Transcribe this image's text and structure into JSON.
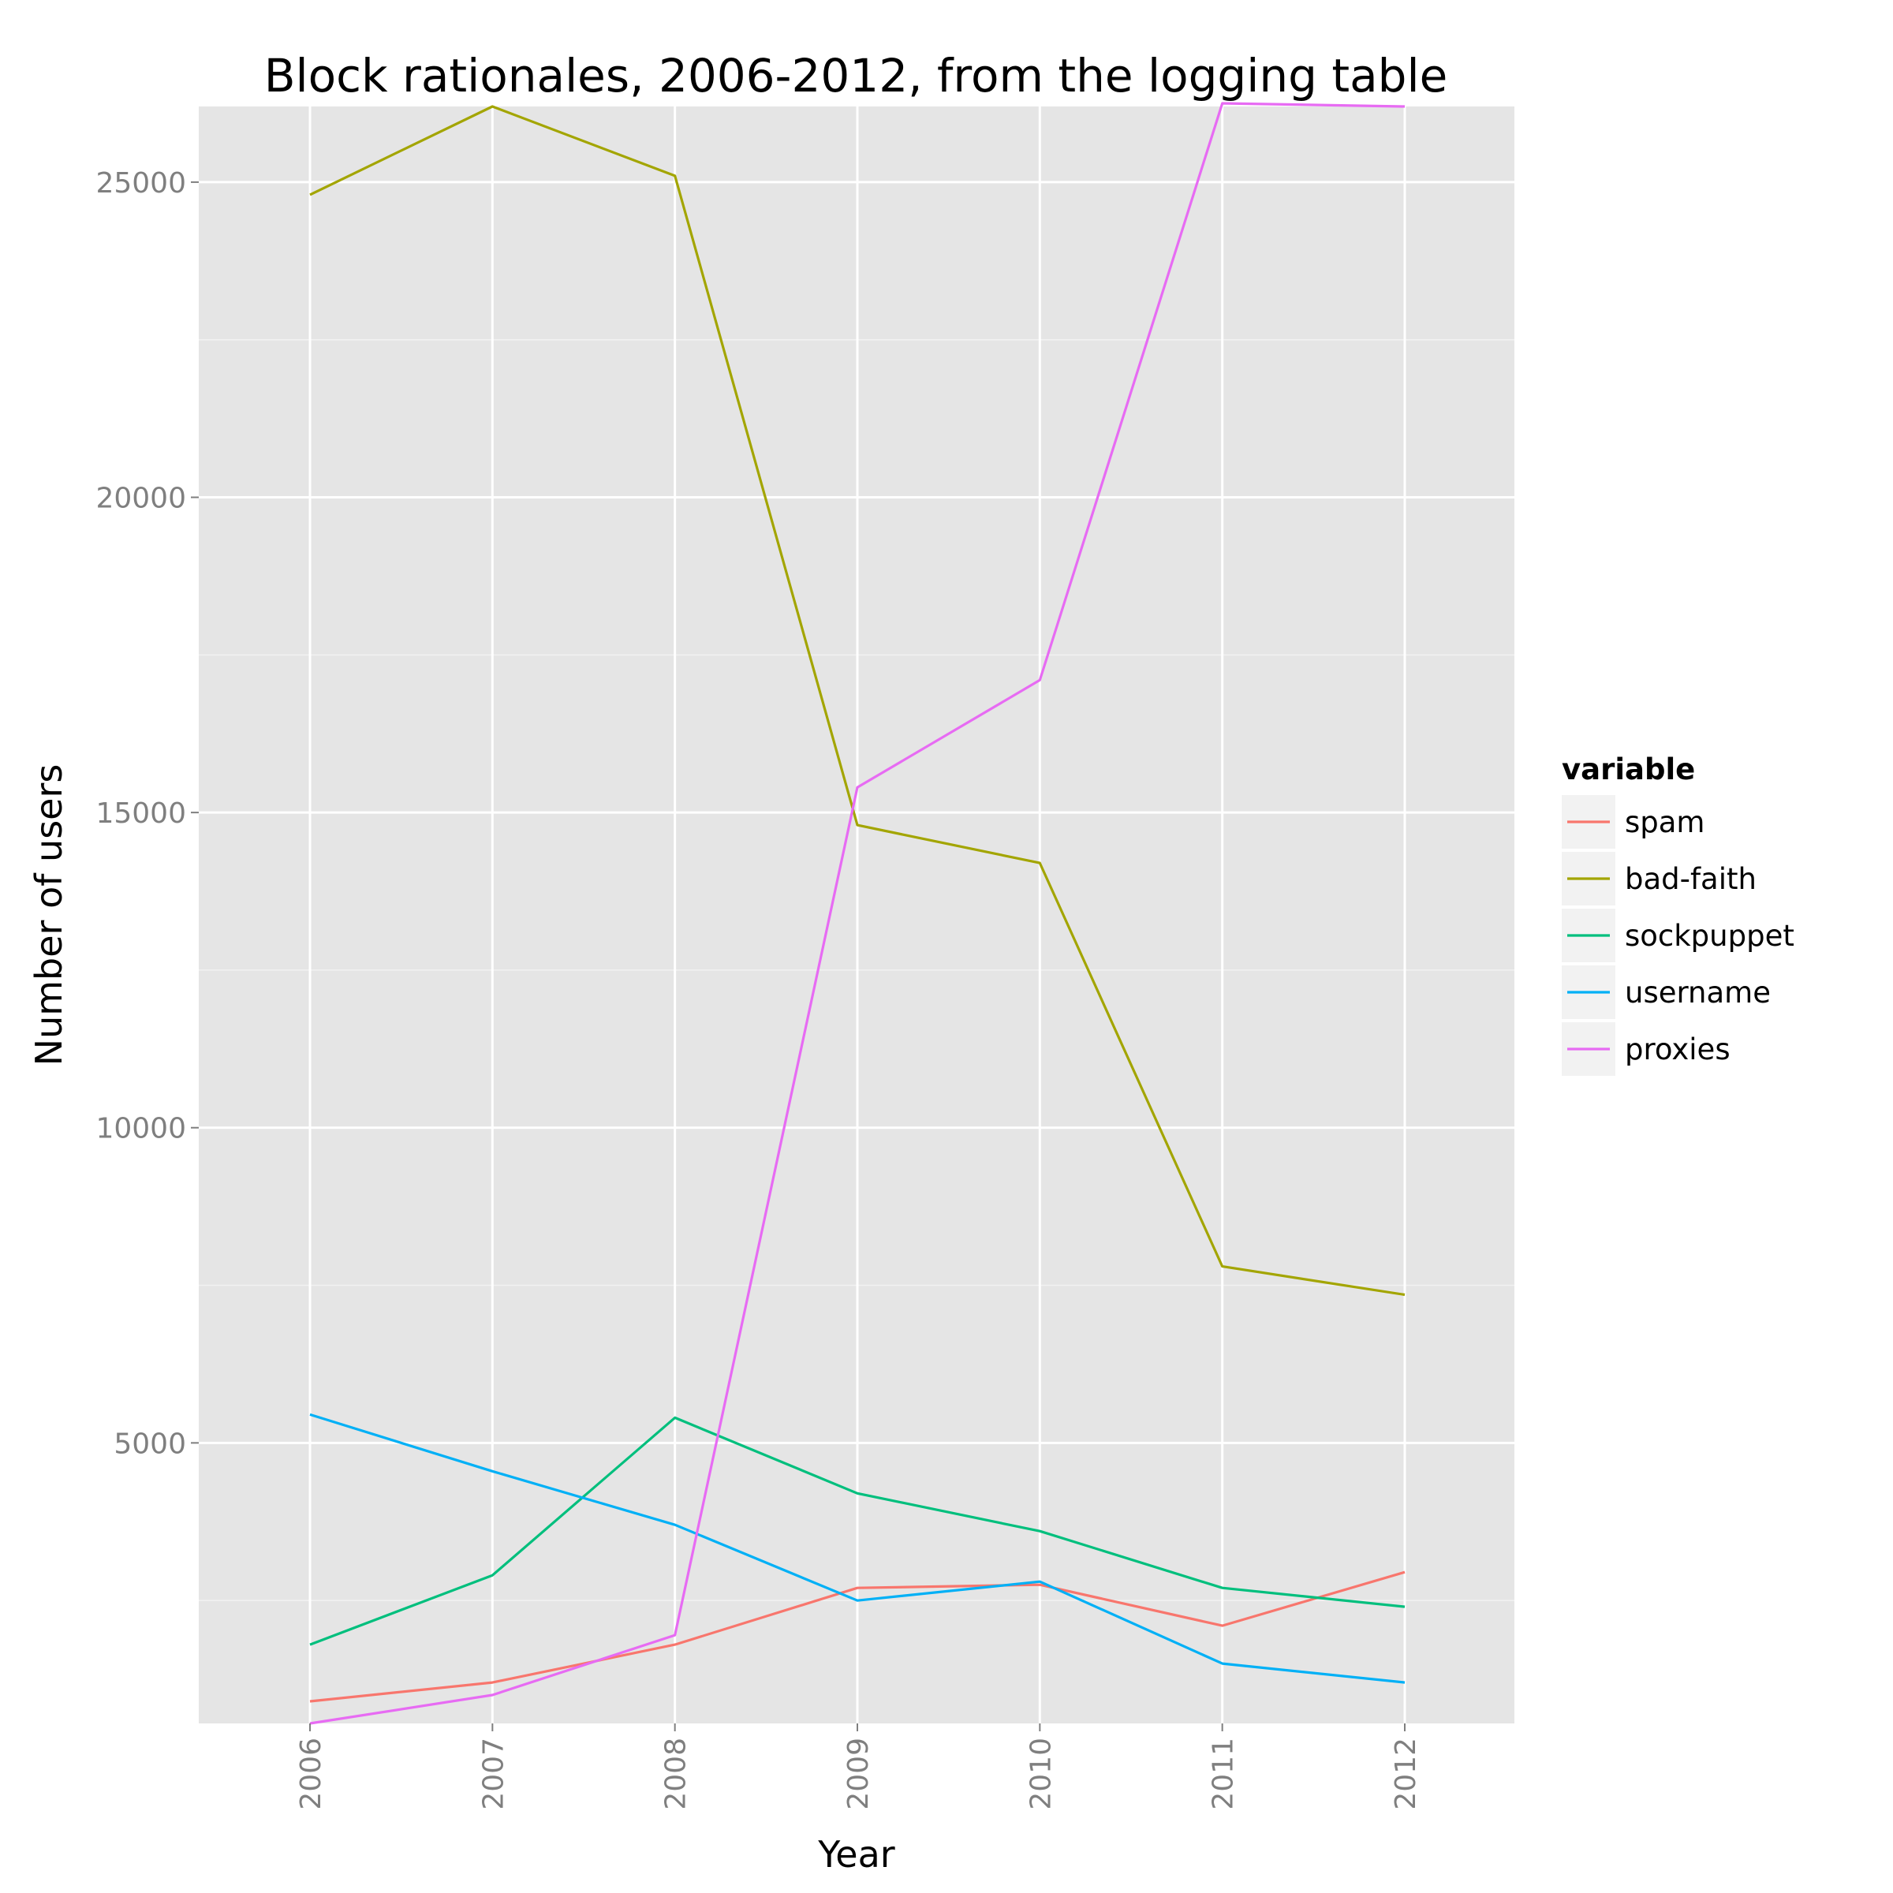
{
  "chart_data": {
    "type": "line",
    "title": "Block rationales, 2006-2012, from the logging table",
    "xlabel": "Year",
    "ylabel": "Number of users",
    "x": [
      "2006",
      "2007",
      "2008",
      "2009",
      "2010",
      "2011",
      "2012"
    ],
    "ylim": [
      550,
      26200
    ],
    "yticks": [
      5000,
      10000,
      15000,
      20000,
      25000
    ],
    "grid": true,
    "legend": {
      "title": "variable",
      "position": "right"
    },
    "series": [
      {
        "name": "spam",
        "color": "#F8766D",
        "values": [
          900,
          1200,
          1800,
          2700,
          2750,
          2100,
          2950
        ]
      },
      {
        "name": "bad-faith",
        "color": "#A3A500",
        "values": [
          24800,
          26200,
          25100,
          14800,
          14200,
          7800,
          7350
        ]
      },
      {
        "name": "sockpuppet",
        "color": "#00BF7D",
        "values": [
          1800,
          2900,
          5400,
          4200,
          3600,
          2700,
          2400
        ]
      },
      {
        "name": "username",
        "color": "#00B0F6",
        "values": [
          5450,
          4550,
          3700,
          2500,
          2800,
          1500,
          1200
        ]
      },
      {
        "name": "proxies",
        "color": "#E76BF3",
        "values": [
          550,
          1000,
          1950,
          15400,
          17100,
          26250,
          26200
        ]
      }
    ]
  }
}
